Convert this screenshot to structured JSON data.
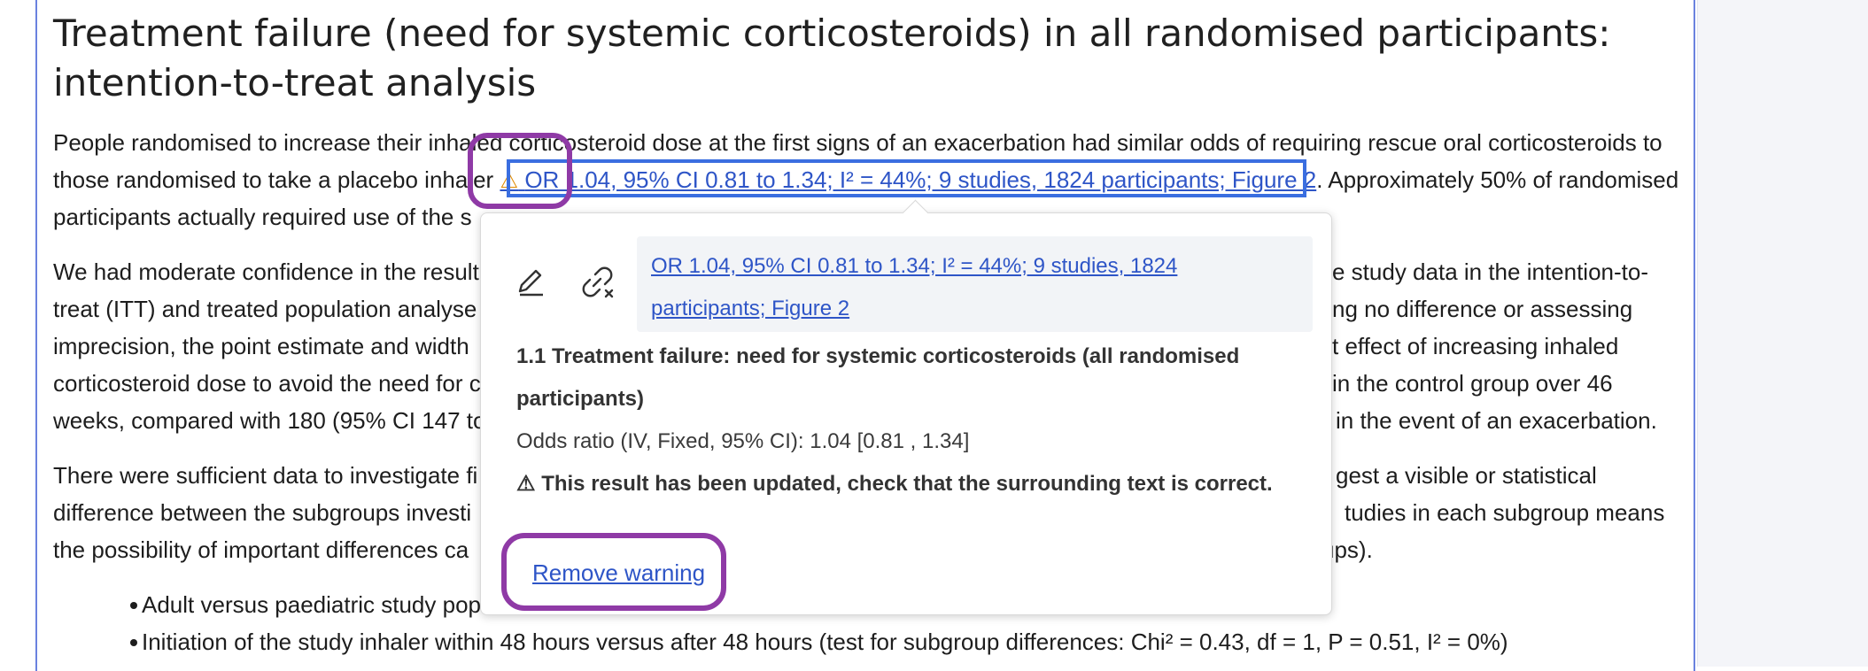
{
  "heading": {
    "line1": "Treatment failure (need for systemic corticosteroids) in all randomised participants:",
    "line2": "intention-to-treat analysis"
  },
  "para1": {
    "line1": "People randomised to increase their inhaled corticosteroid dose at the first signs of an exacerbation had similar odds of requiring rescue oral corticosteroids to",
    "line2_before": "those randomised to take a placebo inhaler",
    "warning_glyph": "⚠",
    "citation": "OR 1.04, 95% CI 0.81 to 1.34; I² = 44%; 9 studies, 1824 participants; Figure 2",
    "line2_after": ". Approximately 50% of randomised",
    "line3": "participants actually required use of the s"
  },
  "para2": {
    "line1_left": "We had moderate confidence in the result",
    "line1_right": "e study data in the intention-to-",
    "line2_left": "treat (ITT) and treated population analyse",
    "line2_right": "ng no difference or assessing",
    "line3_left": "imprecision, the point estimate and width",
    "line3_right": "t effect of increasing inhaled",
    "line4_left": "corticosteroid dose to avoid the need for c",
    "line4_right": "in the control group over 46",
    "line5_left": "weeks, compared with 180 (95% CI 147 to",
    "line5_right": "in the event of an exacerbation."
  },
  "para3": {
    "line1_left": "There were sufficient data to investigate fi",
    "line1_right": "gest a visible or statistical",
    "line2_left": "difference between the subgroups investi",
    "line2_right": "tudies in each subgroup means",
    "line3_left": "the possibility of important differences ca",
    "line3_right": "ups)."
  },
  "bullets": [
    "Adult versus paediatric study popu",
    "Initiation of the study inhaler within 48 hours versus after 48 hours (test for subgroup differences: Chi² = 0.43, df = 1, P = 0.51, I² = 0%)"
  ],
  "popover": {
    "citation_line1": "OR 1.04, 95% CI 0.81 to 1.34; I² = 44%; 9 studies, 1824",
    "citation_line2": "participants; Figure 2",
    "title": "1.1 Treatment failure: need for systemic corticosteroids (all randomised participants)",
    "stat": "Odds ratio (IV, Fixed, 95% CI): 1.04 [0.81 , 1.34]",
    "warning_glyph": "⚠",
    "warning_text": "This result has been updated, check that the surrounding text is correct.",
    "remove_label": "Remove warning",
    "edit_icon": "pencil-icon",
    "unlink_icon": "unlink-icon"
  },
  "colors": {
    "link": "#2e55c7",
    "warning": "#e08a00",
    "highlight_purple": "#8f3aa6",
    "highlight_blue": "#3a6ee0"
  }
}
